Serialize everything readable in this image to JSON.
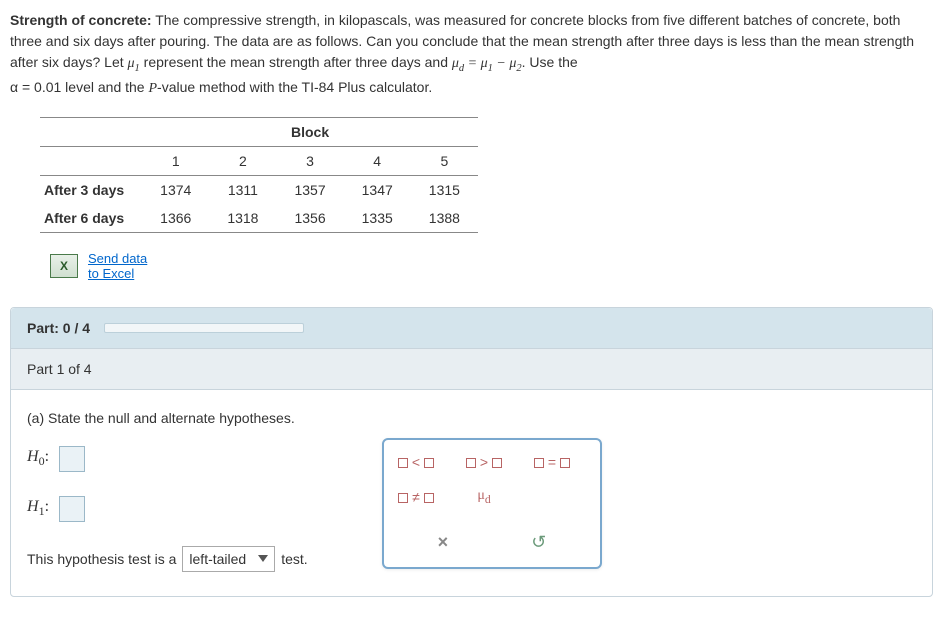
{
  "problem": {
    "title": "Strength of concrete:",
    "text1": " The compressive strength, in kilopascals, was measured for concrete blocks from five different batches of concrete, both three and six days after pouring. The data are as follows. Can you conclude that the mean strength after three days is less than the mean strength after six days? Let ",
    "mu1": "μ",
    "sub1": "1",
    "text2": " represent the mean strength after three days and ",
    "mud": "μ",
    "subd": "d",
    "eq": " = μ",
    "eqsub1": "1",
    "minus": " − μ",
    "eqsub2": "2",
    "text3": ". Use the ",
    "alpha_line": "α = 0.01 level and the ",
    "pval": "P",
    "text4": "-value method with the TI-84 Plus calculator."
  },
  "table": {
    "super_header": "Block",
    "cols": [
      "1",
      "2",
      "3",
      "4",
      "5"
    ],
    "rows": [
      {
        "label": "After 3 days",
        "vals": [
          "1374",
          "1311",
          "1357",
          "1347",
          "1315"
        ]
      },
      {
        "label": "After 6 days",
        "vals": [
          "1366",
          "1318",
          "1356",
          "1335",
          "1388"
        ]
      }
    ]
  },
  "excel": {
    "line1": "Send data",
    "line2": "to Excel"
  },
  "parts": {
    "progress": "Part: 0 / 4",
    "sub": "Part 1 of 4",
    "q": "(a) State the null and alternate hypotheses.",
    "h0": "H",
    "h0sub": "0",
    "colon": ":",
    "h1": "H",
    "h1sub": "1",
    "tail_pre": "This hypothesis test is a ",
    "tail_sel": "left-tailed",
    "tail_post": " test."
  },
  "palette": {
    "lt": "<",
    "gt": ">",
    "eq": "=",
    "ne": "≠",
    "mud": "μ",
    "mudsub": "d",
    "close": "×",
    "reset": "↺"
  }
}
